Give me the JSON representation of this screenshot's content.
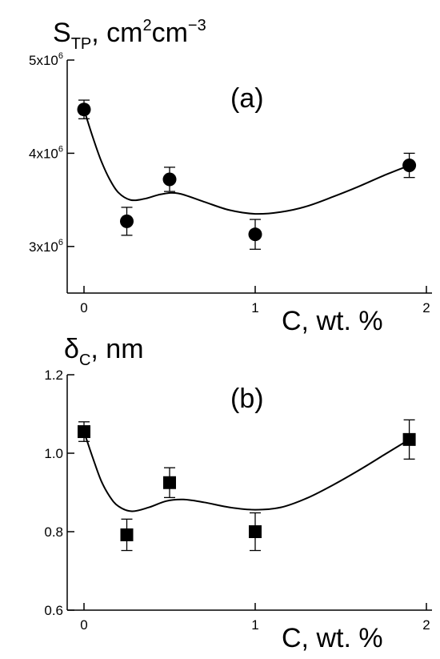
{
  "chart_data": [
    {
      "type": "scatter",
      "panel_label": "(a)",
      "ylabel": {
        "base": "S",
        "sub": "TP",
        "rest": ", cm",
        "sup1": "2",
        "mid": "cm",
        "sup2": "−3"
      },
      "xlabel": {
        "text": "C, wt. %"
      },
      "xticks": [
        "0",
        "1",
        "2"
      ],
      "xlim": [
        -0.12,
        2.0
      ],
      "yticks": [
        {
          "value": 3000000,
          "mant": "3x10",
          "exp": "6"
        },
        {
          "value": 4000000,
          "mant": "4x10",
          "exp": "6"
        },
        {
          "value": 5000000,
          "mant": "5x10",
          "exp": "6"
        }
      ],
      "ylim": [
        2500000,
        5000000
      ],
      "marker": "circle",
      "points": [
        {
          "x": 0.0,
          "y": 4470000,
          "err": 100000
        },
        {
          "x": 0.25,
          "y": 3270000,
          "err": 150000
        },
        {
          "x": 0.5,
          "y": 3720000,
          "err": 130000
        },
        {
          "x": 1.0,
          "y": 3130000,
          "err": 160000
        },
        {
          "x": 1.9,
          "y": 3870000,
          "err": 130000
        }
      ],
      "fit_curve": [
        {
          "x": 0.0,
          "y": 4470000
        },
        {
          "x": 0.05,
          "y": 4180000
        },
        {
          "x": 0.1,
          "y": 3920000
        },
        {
          "x": 0.15,
          "y": 3720000
        },
        {
          "x": 0.2,
          "y": 3580000
        },
        {
          "x": 0.27,
          "y": 3500000
        },
        {
          "x": 0.35,
          "y": 3510000
        },
        {
          "x": 0.45,
          "y": 3560000
        },
        {
          "x": 0.55,
          "y": 3570000
        },
        {
          "x": 0.7,
          "y": 3480000
        },
        {
          "x": 0.85,
          "y": 3390000
        },
        {
          "x": 1.0,
          "y": 3350000
        },
        {
          "x": 1.15,
          "y": 3370000
        },
        {
          "x": 1.3,
          "y": 3430000
        },
        {
          "x": 1.45,
          "y": 3530000
        },
        {
          "x": 1.6,
          "y": 3640000
        },
        {
          "x": 1.75,
          "y": 3760000
        },
        {
          "x": 1.9,
          "y": 3870000
        }
      ]
    },
    {
      "type": "scatter",
      "panel_label": "(b)",
      "ylabel": {
        "base": "δ",
        "sub": "C",
        "rest": ", nm"
      },
      "xlabel": {
        "text": "C, wt. %"
      },
      "xticks": [
        "0",
        "1",
        "2"
      ],
      "xlim": [
        -0.12,
        2.0
      ],
      "yticks": [
        {
          "value": 0.6,
          "label": "0.6"
        },
        {
          "value": 0.8,
          "label": "0.8"
        },
        {
          "value": 1.0,
          "label": "1.0"
        },
        {
          "value": 1.2,
          "label": "1.2"
        }
      ],
      "ylim": [
        0.6,
        1.2
      ],
      "marker": "square",
      "points": [
        {
          "x": 0.0,
          "y": 1.055,
          "err": 0.025
        },
        {
          "x": 0.25,
          "y": 0.792,
          "err": 0.04
        },
        {
          "x": 0.5,
          "y": 0.925,
          "err": 0.038
        },
        {
          "x": 1.0,
          "y": 0.8,
          "err": 0.048
        },
        {
          "x": 1.9,
          "y": 1.035,
          "err": 0.05
        }
      ],
      "fit_curve": [
        {
          "x": 0.0,
          "y": 1.055
        },
        {
          "x": 0.05,
          "y": 0.99
        },
        {
          "x": 0.1,
          "y": 0.93
        },
        {
          "x": 0.15,
          "y": 0.89
        },
        {
          "x": 0.2,
          "y": 0.865
        },
        {
          "x": 0.28,
          "y": 0.852
        },
        {
          "x": 0.38,
          "y": 0.862
        },
        {
          "x": 0.48,
          "y": 0.878
        },
        {
          "x": 0.58,
          "y": 0.882
        },
        {
          "x": 0.7,
          "y": 0.875
        },
        {
          "x": 0.85,
          "y": 0.862
        },
        {
          "x": 1.0,
          "y": 0.856
        },
        {
          "x": 1.15,
          "y": 0.862
        },
        {
          "x": 1.3,
          "y": 0.885
        },
        {
          "x": 1.45,
          "y": 0.918
        },
        {
          "x": 1.6,
          "y": 0.955
        },
        {
          "x": 1.75,
          "y": 0.995
        },
        {
          "x": 1.9,
          "y": 1.035
        }
      ]
    }
  ]
}
